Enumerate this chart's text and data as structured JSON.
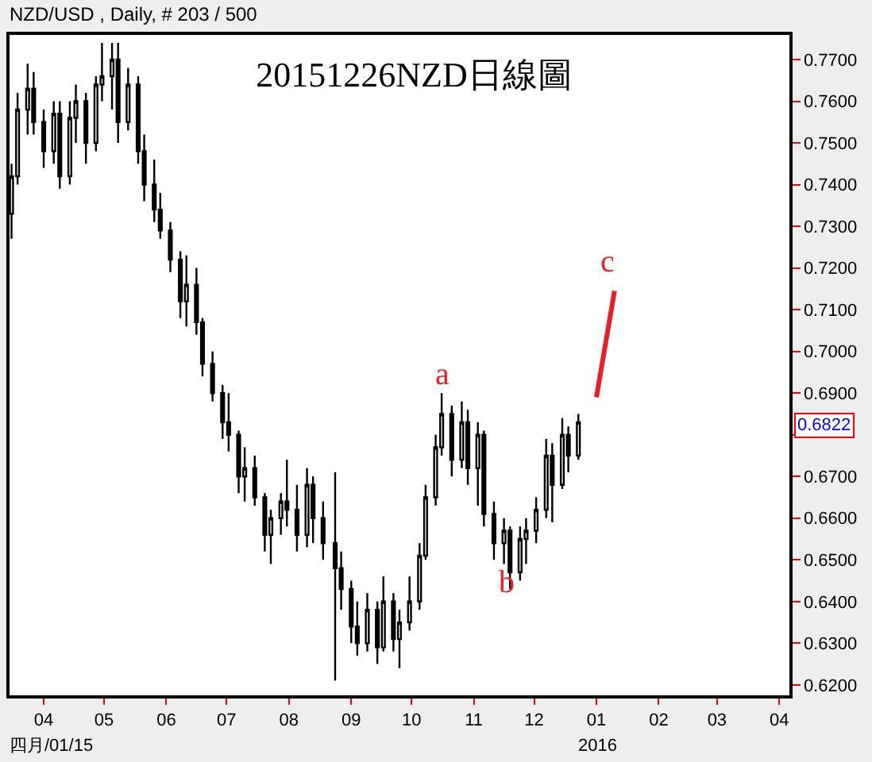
{
  "chart_data": {
    "type": "candlestick",
    "title": "20151226NZD日線圖",
    "subtitle": "NZD/USD , Daily, # 203 / 500",
    "color": "#000000",
    "x": [
      "2015-03-16",
      "2015-03-19",
      "2015-03-24",
      "2015-03-27",
      "2015-04-01",
      "2015-04-06",
      "2015-04-09",
      "2015-04-14",
      "2015-04-17",
      "2015-04-22",
      "2015-04-27",
      "2015-04-30",
      "2015-05-05",
      "2015-05-08",
      "2015-05-13",
      "2015-05-18",
      "2015-05-21",
      "2015-05-26",
      "2015-05-29",
      "2015-06-03",
      "2015-06-08",
      "2015-06-11",
      "2015-06-16",
      "2015-06-19",
      "2015-06-24",
      "2015-06-29",
      "2015-07-02",
      "2015-07-07",
      "2015-07-10",
      "2015-07-15",
      "2015-07-20",
      "2015-07-23",
      "2015-07-28",
      "2015-07-31",
      "2015-08-05",
      "2015-08-10",
      "2015-08-13",
      "2015-08-18",
      "2015-08-24",
      "2015-08-27",
      "2015-09-01",
      "2015-09-04",
      "2015-09-09",
      "2015-09-14",
      "2015-09-17",
      "2015-09-22",
      "2015-09-25",
      "2015-09-30",
      "2015-10-05",
      "2015-10-08",
      "2015-10-13",
      "2015-10-16",
      "2015-10-21",
      "2015-10-26",
      "2015-10-29",
      "2015-11-03",
      "2015-11-06",
      "2015-11-11",
      "2015-11-16",
      "2015-11-19",
      "2015-11-24",
      "2015-11-27",
      "2015-12-02",
      "2015-12-07",
      "2015-12-10",
      "2015-12-15",
      "2015-12-18",
      "2015-12-23"
    ],
    "ohlc": [
      [
        0.733,
        0.745,
        0.727,
        0.742
      ],
      [
        0.742,
        0.762,
        0.74,
        0.758
      ],
      [
        0.758,
        0.769,
        0.752,
        0.763
      ],
      [
        0.763,
        0.767,
        0.752,
        0.755
      ],
      [
        0.755,
        0.758,
        0.744,
        0.748
      ],
      [
        0.748,
        0.76,
        0.745,
        0.757
      ],
      [
        0.757,
        0.76,
        0.739,
        0.742
      ],
      [
        0.742,
        0.76,
        0.74,
        0.756
      ],
      [
        0.756,
        0.764,
        0.75,
        0.76
      ],
      [
        0.76,
        0.762,
        0.745,
        0.75
      ],
      [
        0.75,
        0.766,
        0.748,
        0.764
      ],
      [
        0.764,
        0.774,
        0.76,
        0.766
      ],
      [
        0.766,
        0.774,
        0.758,
        0.77
      ],
      [
        0.77,
        0.774,
        0.75,
        0.755
      ],
      [
        0.755,
        0.768,
        0.753,
        0.764
      ],
      [
        0.764,
        0.766,
        0.745,
        0.748
      ],
      [
        0.748,
        0.752,
        0.736,
        0.74
      ],
      [
        0.74,
        0.746,
        0.731,
        0.734
      ],
      [
        0.734,
        0.738,
        0.727,
        0.729
      ],
      [
        0.729,
        0.731,
        0.719,
        0.722
      ],
      [
        0.722,
        0.724,
        0.708,
        0.712
      ],
      [
        0.712,
        0.723,
        0.706,
        0.716
      ],
      [
        0.716,
        0.72,
        0.704,
        0.707
      ],
      [
        0.707,
        0.708,
        0.694,
        0.697
      ],
      [
        0.697,
        0.7,
        0.688,
        0.69
      ],
      [
        0.69,
        0.692,
        0.679,
        0.683
      ],
      [
        0.683,
        0.69,
        0.676,
        0.68
      ],
      [
        0.68,
        0.681,
        0.666,
        0.67
      ],
      [
        0.67,
        0.677,
        0.664,
        0.672
      ],
      [
        0.672,
        0.675,
        0.663,
        0.665
      ],
      [
        0.665,
        0.666,
        0.652,
        0.656
      ],
      [
        0.656,
        0.662,
        0.649,
        0.66
      ],
      [
        0.66,
        0.666,
        0.656,
        0.664
      ],
      [
        0.664,
        0.674,
        0.658,
        0.662
      ],
      [
        0.662,
        0.668,
        0.652,
        0.656
      ],
      [
        0.656,
        0.672,
        0.653,
        0.668
      ],
      [
        0.668,
        0.67,
        0.654,
        0.66
      ],
      [
        0.66,
        0.664,
        0.65,
        0.654
      ],
      [
        0.654,
        0.671,
        0.621,
        0.648
      ],
      [
        0.648,
        0.652,
        0.638,
        0.643
      ],
      [
        0.643,
        0.645,
        0.63,
        0.634
      ],
      [
        0.634,
        0.64,
        0.627,
        0.63
      ],
      [
        0.63,
        0.642,
        0.628,
        0.638
      ],
      [
        0.638,
        0.64,
        0.625,
        0.629
      ],
      [
        0.629,
        0.646,
        0.628,
        0.64
      ],
      [
        0.64,
        0.642,
        0.628,
        0.631
      ],
      [
        0.631,
        0.638,
        0.624,
        0.635
      ],
      [
        0.635,
        0.646,
        0.633,
        0.64
      ],
      [
        0.64,
        0.654,
        0.638,
        0.651
      ],
      [
        0.651,
        0.668,
        0.65,
        0.665
      ],
      [
        0.665,
        0.68,
        0.663,
        0.677
      ],
      [
        0.677,
        0.69,
        0.675,
        0.685
      ],
      [
        0.685,
        0.687,
        0.67,
        0.674
      ],
      [
        0.674,
        0.688,
        0.672,
        0.683
      ],
      [
        0.683,
        0.686,
        0.668,
        0.672
      ],
      [
        0.672,
        0.683,
        0.663,
        0.68
      ],
      [
        0.68,
        0.681,
        0.658,
        0.661
      ],
      [
        0.661,
        0.664,
        0.65,
        0.654
      ],
      [
        0.654,
        0.66,
        0.649,
        0.657
      ],
      [
        0.657,
        0.658,
        0.643,
        0.647
      ],
      [
        0.647,
        0.658,
        0.645,
        0.655
      ],
      [
        0.655,
        0.66,
        0.649,
        0.657
      ],
      [
        0.657,
        0.665,
        0.654,
        0.662
      ],
      [
        0.662,
        0.679,
        0.66,
        0.675
      ],
      [
        0.675,
        0.678,
        0.659,
        0.668
      ],
      [
        0.668,
        0.684,
        0.667,
        0.68
      ],
      [
        0.68,
        0.682,
        0.671,
        0.675
      ],
      [
        0.675,
        0.685,
        0.674,
        0.683
      ]
    ],
    "series": [
      {
        "type": "line",
        "x": [
          "2016-01-01",
          "2016-01-10"
        ],
        "values": [
          0.689,
          0.7145
        ],
        "color": "#ee1c25"
      }
    ],
    "annotations": [
      "a",
      "b",
      "c",
      "0.6822",
      "四月/01/15",
      "2016"
    ],
    "xlim": [
      "2015-03-15",
      "2016-04-06"
    ],
    "xticks": [
      {
        "value": "2015-04-01",
        "label": "04"
      },
      {
        "value": "2015-05-01",
        "label": "05"
      },
      {
        "value": "2015-06-01",
        "label": "06"
      },
      {
        "value": "2015-07-01",
        "label": "07"
      },
      {
        "value": "2015-08-01",
        "label": "08"
      },
      {
        "value": "2015-09-01",
        "label": "09"
      },
      {
        "value": "2015-10-01",
        "label": "10"
      },
      {
        "value": "2015-11-01",
        "label": "11"
      },
      {
        "value": "2015-12-01",
        "label": "12"
      },
      {
        "value": "2016-01-01",
        "label": "01"
      },
      {
        "value": "2016-02-01",
        "label": "02"
      },
      {
        "value": "2016-03-01",
        "label": "03"
      },
      {
        "value": "2016-04-01",
        "label": "04"
      }
    ],
    "ylim": [
      0.6175,
      0.7759
    ],
    "yticks": [
      {
        "value": 0.62,
        "label": "0.6200"
      },
      {
        "value": 0.63,
        "label": "0.6300"
      },
      {
        "value": 0.64,
        "label": "0.6400"
      },
      {
        "value": 0.65,
        "label": "0.6500"
      },
      {
        "value": 0.66,
        "label": "0.6600"
      },
      {
        "value": 0.67,
        "label": "0.6700"
      },
      {
        "value": 0.68,
        "label": null
      },
      {
        "value": 0.69,
        "label": "0.6900"
      },
      {
        "value": 0.7,
        "label": "0.7000"
      },
      {
        "value": 0.71,
        "label": "0.7100"
      },
      {
        "value": 0.72,
        "label": "0.7200"
      },
      {
        "value": 0.73,
        "label": "0.7300"
      },
      {
        "value": 0.74,
        "label": "0.7400"
      },
      {
        "value": 0.75,
        "label": "0.7500"
      },
      {
        "value": 0.76,
        "label": "0.7600"
      },
      {
        "value": 0.77,
        "label": "0.7700"
      }
    ]
  }
}
